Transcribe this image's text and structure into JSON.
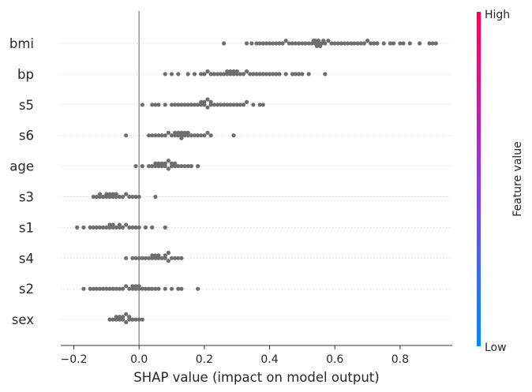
{
  "chart_data": {
    "type": "scatter",
    "xlabel": "SHAP value (impact on model output)",
    "xlim": [
      -0.24,
      0.96
    ],
    "xticks": [
      -0.2,
      0.0,
      0.2,
      0.4,
      0.6,
      0.8
    ],
    "xtick_labels": [
      "−0.2",
      "0.0",
      "0.2",
      "0.4",
      "0.6",
      "0.8"
    ],
    "features": [
      "bmi",
      "bp",
      "s5",
      "s6",
      "age",
      "s3",
      "s1",
      "s4",
      "s2",
      "sex"
    ],
    "point_color": "#6e6e6e",
    "series": [
      {
        "feature": "bmi",
        "values": [
          0.26,
          0.33,
          0.345,
          0.36,
          0.37,
          0.38,
          0.39,
          0.4,
          0.41,
          0.42,
          0.43,
          0.44,
          0.45,
          0.46,
          0.47,
          0.48,
          0.49,
          0.5,
          0.51,
          0.52,
          0.53,
          0.535,
          0.54,
          0.54,
          0.545,
          0.55,
          0.55,
          0.555,
          0.56,
          0.565,
          0.57,
          0.58,
          0.59,
          0.6,
          0.61,
          0.62,
          0.63,
          0.64,
          0.65,
          0.66,
          0.67,
          0.68,
          0.69,
          0.7,
          0.71,
          0.72,
          0.73,
          0.75,
          0.77,
          0.78,
          0.8,
          0.81,
          0.83,
          0.86,
          0.89,
          0.9,
          0.91
        ]
      },
      {
        "feature": "bp",
        "values": [
          0.08,
          0.1,
          0.12,
          0.15,
          0.17,
          0.19,
          0.2,
          0.21,
          0.22,
          0.23,
          0.24,
          0.25,
          0.26,
          0.27,
          0.27,
          0.28,
          0.28,
          0.29,
          0.29,
          0.3,
          0.3,
          0.31,
          0.32,
          0.33,
          0.34,
          0.35,
          0.36,
          0.37,
          0.38,
          0.39,
          0.4,
          0.41,
          0.42,
          0.43,
          0.45,
          0.47,
          0.48,
          0.49,
          0.5,
          0.52,
          0.57
        ]
      },
      {
        "feature": "s5",
        "values": [
          0.01,
          0.04,
          0.05,
          0.06,
          0.08,
          0.1,
          0.11,
          0.12,
          0.13,
          0.14,
          0.15,
          0.16,
          0.17,
          0.18,
          0.19,
          0.19,
          0.2,
          0.2,
          0.21,
          0.21,
          0.22,
          0.22,
          0.23,
          0.24,
          0.25,
          0.26,
          0.27,
          0.28,
          0.29,
          0.3,
          0.31,
          0.32,
          0.33,
          0.35,
          0.37,
          0.38
        ]
      },
      {
        "feature": "s6",
        "values": [
          -0.04,
          0.03,
          0.04,
          0.05,
          0.06,
          0.07,
          0.08,
          0.09,
          0.1,
          0.11,
          0.11,
          0.12,
          0.12,
          0.13,
          0.13,
          0.13,
          0.14,
          0.14,
          0.15,
          0.15,
          0.16,
          0.17,
          0.18,
          0.19,
          0.2,
          0.21,
          0.22,
          0.29
        ]
      },
      {
        "feature": "age",
        "values": [
          -0.01,
          0.01,
          0.03,
          0.04,
          0.05,
          0.05,
          0.06,
          0.06,
          0.07,
          0.07,
          0.08,
          0.08,
          0.09,
          0.09,
          0.1,
          0.1,
          0.11,
          0.11,
          0.12,
          0.13,
          0.14,
          0.15,
          0.16,
          0.18
        ]
      },
      {
        "feature": "s3",
        "values": [
          -0.14,
          -0.13,
          -0.12,
          -0.12,
          -0.11,
          -0.1,
          -0.1,
          -0.09,
          -0.09,
          -0.08,
          -0.08,
          -0.07,
          -0.07,
          -0.06,
          -0.05,
          -0.04,
          -0.03,
          -0.02,
          -0.01,
          0.0,
          0.05
        ]
      },
      {
        "feature": "s1",
        "values": [
          -0.19,
          -0.17,
          -0.15,
          -0.14,
          -0.13,
          -0.12,
          -0.11,
          -0.1,
          -0.09,
          -0.09,
          -0.08,
          -0.08,
          -0.07,
          -0.06,
          -0.06,
          -0.05,
          -0.04,
          -0.03,
          -0.02,
          -0.01,
          0.0,
          0.02,
          0.04,
          0.08
        ]
      },
      {
        "feature": "s4",
        "values": [
          -0.04,
          -0.02,
          -0.01,
          0.0,
          0.01,
          0.02,
          0.03,
          0.04,
          0.04,
          0.05,
          0.05,
          0.06,
          0.06,
          0.07,
          0.08,
          0.08,
          0.09,
          0.09,
          0.1,
          0.11,
          0.12,
          0.13
        ]
      },
      {
        "feature": "s2",
        "values": [
          -0.17,
          -0.15,
          -0.14,
          -0.13,
          -0.12,
          -0.11,
          -0.1,
          -0.09,
          -0.08,
          -0.07,
          -0.06,
          -0.05,
          -0.04,
          -0.03,
          -0.02,
          -0.02,
          -0.01,
          -0.01,
          0.0,
          0.0,
          0.01,
          0.02,
          0.03,
          0.04,
          0.05,
          0.06,
          0.08,
          0.1,
          0.12,
          0.13,
          0.18
        ]
      },
      {
        "feature": "sex",
        "values": [
          -0.09,
          -0.08,
          -0.07,
          -0.07,
          -0.06,
          -0.06,
          -0.05,
          -0.05,
          -0.04,
          -0.04,
          -0.03,
          -0.03,
          -0.02,
          -0.01,
          0.0,
          0.01
        ]
      }
    ],
    "colorbar": {
      "label": "Feature value",
      "high_label": "High",
      "low_label": "Low",
      "high_color": "#ff0052",
      "mid_color": "#8d3dd8",
      "low_color": "#008bfb"
    },
    "grid": false,
    "legend": "colorbar-right"
  }
}
